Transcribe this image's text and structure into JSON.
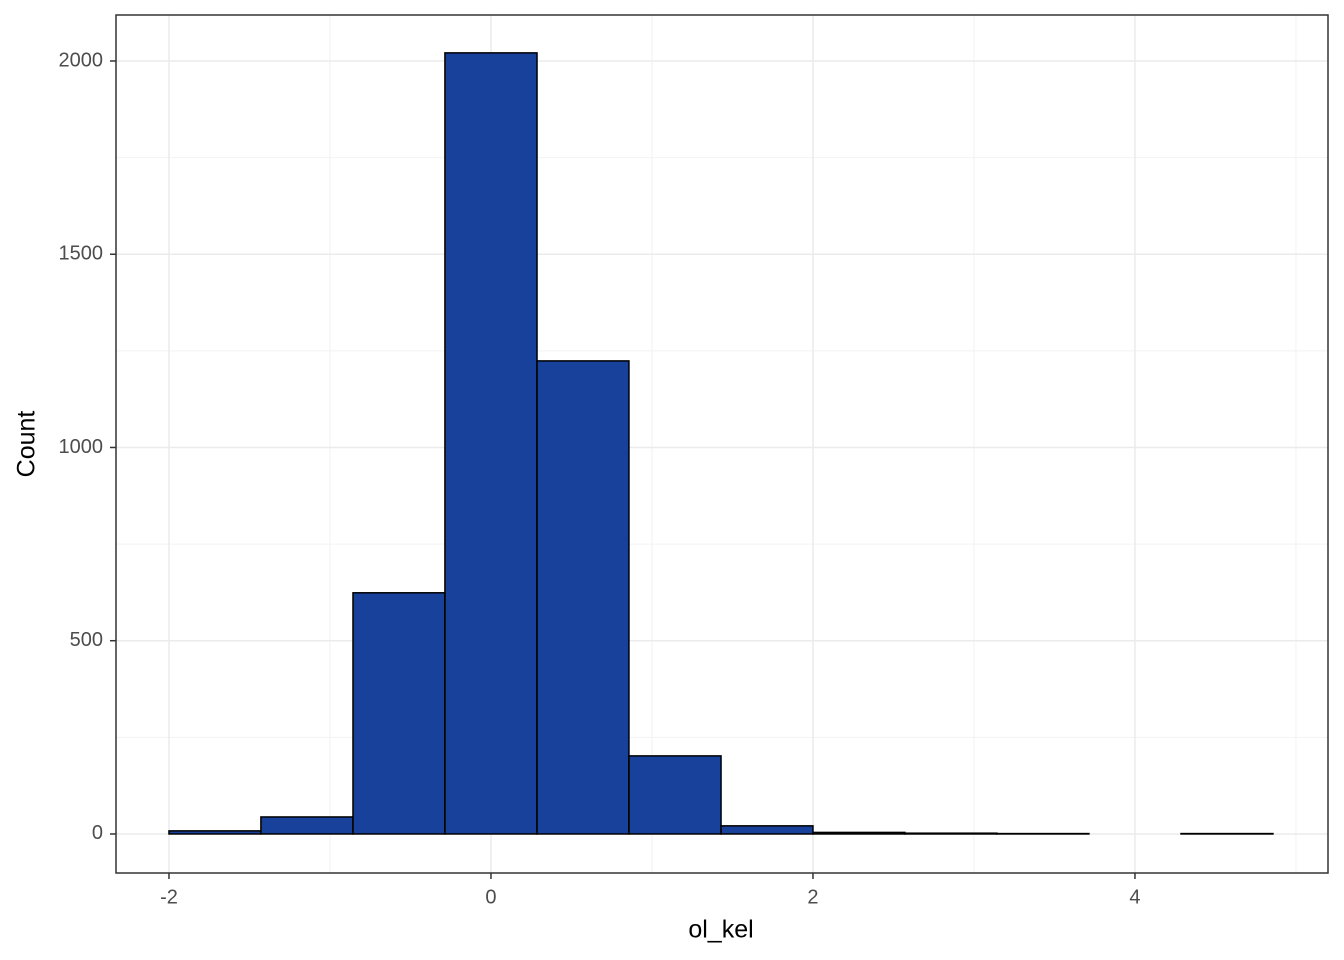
{
  "chart_data": {
    "type": "histogram",
    "x_label": "ol_kel",
    "y_label": "Count",
    "bins": [
      -2,
      -1.429,
      -0.857,
      -0.286,
      0.286,
      0.857,
      1.429,
      2,
      2.571,
      3.143,
      3.714,
      4.286,
      4.857
    ],
    "counts": [
      8,
      44,
      624,
      2021,
      1224,
      202,
      21,
      4,
      2,
      1,
      0,
      1
    ],
    "color": "#17419a",
    "edge_color": "#000000",
    "xlim": [
      -2.329,
      5.199
    ],
    "xticks": [
      -2,
      0,
      2,
      4
    ],
    "xminor": [
      -1,
      1,
      3,
      5
    ],
    "ylim": [
      -101,
      2119
    ],
    "yticks": [
      0,
      500,
      1000,
      1500,
      2000
    ],
    "yminor": [
      250,
      750,
      1250,
      1750
    ],
    "grid": true
  }
}
